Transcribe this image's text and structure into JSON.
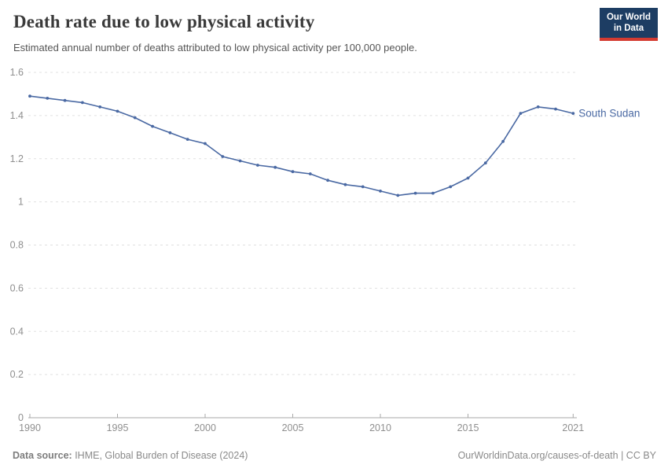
{
  "header": {
    "logo": {
      "line1": "Our World",
      "line2": "in Data",
      "bg_color": "#1d3d63",
      "accent_color": "#d43b31"
    }
  },
  "footer": {
    "datasource_label": "Data source:",
    "datasource_value": " IHME, Global Burden of Disease (2024)",
    "link": "OurWorldinData.org/causes-of-death | CC BY"
  },
  "chart_data": {
    "type": "line",
    "title": "Death rate due to low physical activity",
    "subtitle": "Estimated annual number of deaths attributed to low physical activity per 100,000 people.",
    "x": [
      1990,
      1991,
      1992,
      1993,
      1994,
      1995,
      1996,
      1997,
      1998,
      1999,
      2000,
      2001,
      2002,
      2003,
      2004,
      2005,
      2006,
      2007,
      2008,
      2009,
      2010,
      2011,
      2012,
      2013,
      2014,
      2015,
      2016,
      2017,
      2018,
      2019,
      2020,
      2021
    ],
    "series": [
      {
        "name": "South Sudan",
        "color": "#4a69a3",
        "values": [
          1.49,
          1.48,
          1.47,
          1.46,
          1.44,
          1.42,
          1.39,
          1.35,
          1.32,
          1.29,
          1.27,
          1.21,
          1.19,
          1.17,
          1.16,
          1.14,
          1.13,
          1.1,
          1.08,
          1.07,
          1.05,
          1.03,
          1.04,
          1.04,
          1.07,
          1.11,
          1.18,
          1.28,
          1.41,
          1.44,
          1.43,
          1.41
        ]
      }
    ],
    "xlabel": "",
    "ylabel": "",
    "xlim": [
      1990,
      2021
    ],
    "ylim": [
      0,
      1.6
    ],
    "xticks": [
      1990,
      1995,
      2000,
      2005,
      2010,
      2015,
      2021
    ],
    "yticks": [
      0,
      0.2,
      0.4,
      0.6,
      0.8,
      1,
      1.2,
      1.4,
      1.6
    ],
    "grid": "horizontal-dashed",
    "legend": "end-of-line-label",
    "colors": {
      "gridline": "#e0e0e0",
      "axis_line": "#a8a8a8",
      "tick_text": "#8f8f8f"
    }
  }
}
